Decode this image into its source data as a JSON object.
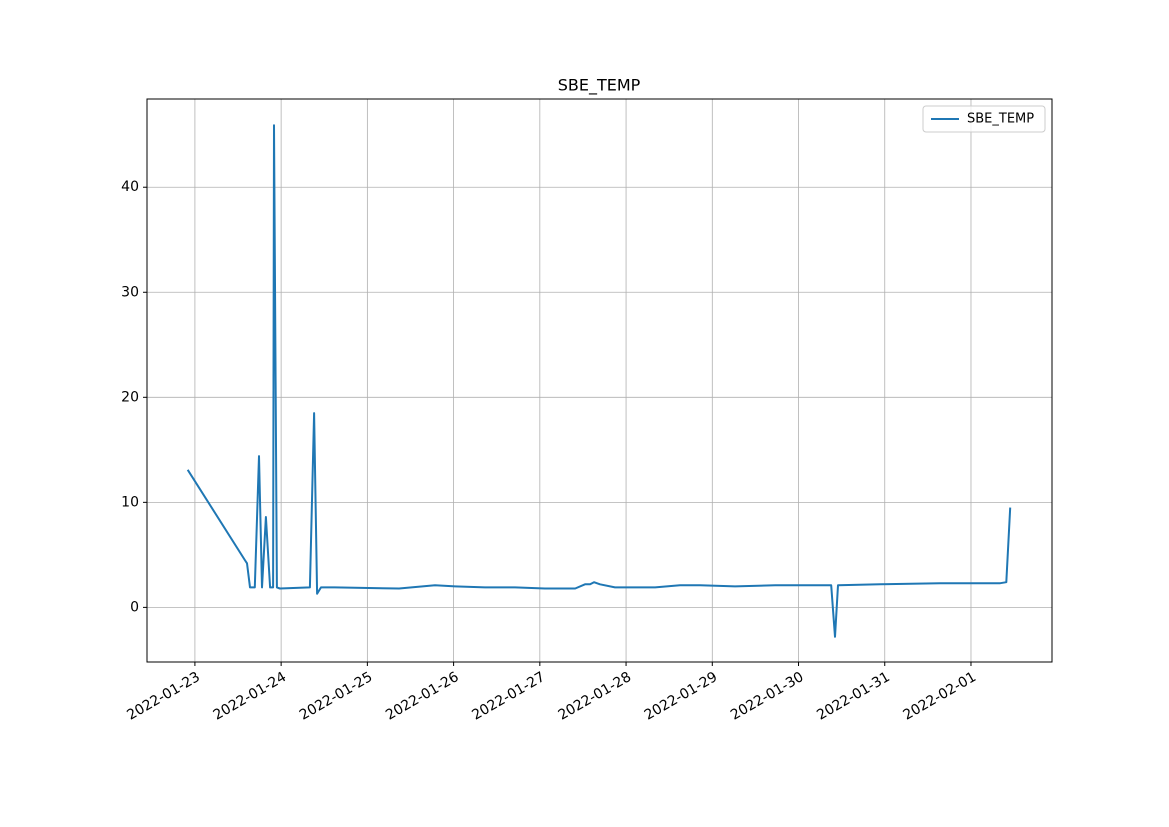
{
  "chart_data": {
    "type": "line",
    "title": "SBE_TEMP",
    "x": [
      "2022-01-22T22:00",
      "2022-01-23T13:55",
      "2022-01-23T14:30",
      "2022-01-23T15:20",
      "2022-01-23T16:40",
      "2022-01-23T17:50",
      "2022-01-23T18:40",
      "2022-01-23T19:45",
      "2022-01-23T20:55",
      "2022-01-23T21:45",
      "2022-01-23T22:00",
      "2022-01-23T22:50",
      "2022-01-23T23:40",
      "2022-01-24T08:00",
      "2022-01-24T09:10",
      "2022-01-24T10:00",
      "2022-01-24T11:05",
      "2022-01-24T14:55",
      "2022-01-25T08:50",
      "2022-01-25T18:50",
      "2022-01-26T00:25",
      "2022-01-26T08:45",
      "2022-01-26T17:05",
      "2022-01-27T01:25",
      "2022-01-27T09:50",
      "2022-01-27T12:35",
      "2022-01-27T14:00",
      "2022-01-27T15:05",
      "2022-01-27T16:45",
      "2022-01-27T20:55",
      "2022-01-28T08:05",
      "2022-01-28T15:00",
      "2022-01-28T20:35",
      "2022-01-29T06:20",
      "2022-01-29T17:30",
      "2022-01-30T00:25",
      "2022-01-30T09:05",
      "2022-01-30T10:10",
      "2022-01-30T11:00",
      "2022-01-30T22:45",
      "2022-01-31T15:25",
      "2022-02-01T08:10",
      "2022-02-01T09:50",
      "2022-02-01T10:55"
    ],
    "series": [
      {
        "name": "SBE_TEMP",
        "color": "#1f77b4",
        "values": [
          13.1,
          4.5,
          4.2,
          1.9,
          1.9,
          14.4,
          1.9,
          8.6,
          1.9,
          1.9,
          45.9,
          1.9,
          1.8,
          1.9,
          18.5,
          1.3,
          1.9,
          1.9,
          1.8,
          2.1,
          2.0,
          1.9,
          1.9,
          1.8,
          1.8,
          2.2,
          2.2,
          2.4,
          2.2,
          1.9,
          1.9,
          2.1,
          2.1,
          2.0,
          2.1,
          2.1,
          2.1,
          -2.8,
          2.1,
          2.2,
          2.3,
          2.3,
          2.4,
          9.5
        ]
      }
    ],
    "xlim": [
      "2022-01-22T10:40",
      "2022-02-01T22:33"
    ],
    "xticks": [
      "2022-01-23",
      "2022-01-24",
      "2022-01-25",
      "2022-01-26",
      "2022-01-27",
      "2022-01-28",
      "2022-01-29",
      "2022-01-30",
      "2022-01-31",
      "2022-02-01"
    ],
    "ylim": [
      -5.2,
      48.4
    ],
    "yticks": [
      0,
      10,
      20,
      30,
      40
    ],
    "grid": true,
    "legend": "upper right"
  }
}
